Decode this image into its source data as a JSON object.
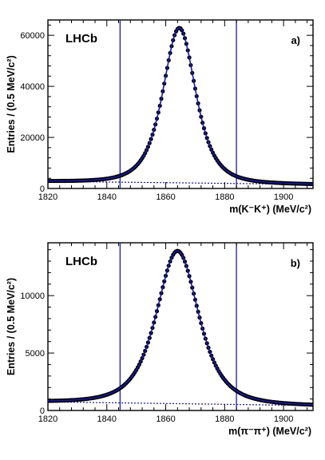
{
  "chart_data": [
    {
      "type": "scatter",
      "panel_label": "a)",
      "brand": "LHCb",
      "ylabel": "Entries / (0.5 MeV/c²)",
      "xlabel": "m(K⁻K⁺) (MeV/c²)",
      "xlim": [
        1820,
        1910
      ],
      "ylim": [
        0,
        66000
      ],
      "x_ticks": [
        1820,
        1840,
        1860,
        1880,
        1900
      ],
      "y_ticks": [
        0,
        20000,
        40000,
        60000
      ],
      "signal_window": [
        1844.5,
        1884
      ],
      "peak": {
        "mean": 1864.6,
        "height": 60700,
        "sigma": 4.5,
        "width_scale": 1.6
      },
      "background": {
        "start": 2800,
        "end": 1600
      },
      "colors": {
        "points": "#000000",
        "fit": "#1a1aa8",
        "window": "#1a1aa8",
        "background": "#1a1aa8"
      }
    },
    {
      "type": "scatter",
      "panel_label": "b)",
      "brand": "LHCb",
      "ylabel": "Entries / (0.5 MeV/c²)",
      "xlabel": "m(π⁻π⁺) (MeV/c²)",
      "xlim": [
        1820,
        1910
      ],
      "ylim": [
        0,
        14600
      ],
      "x_ticks": [
        1820,
        1840,
        1860,
        1880,
        1900
      ],
      "y_ticks": [
        0,
        5000,
        10000
      ],
      "signal_window": [
        1844.5,
        1884
      ],
      "peak": {
        "mean": 1864.0,
        "height": 13300,
        "sigma": 5.6,
        "width_scale": 1.65
      },
      "background": {
        "start": 750,
        "end": 430
      },
      "colors": {
        "points": "#000000",
        "fit": "#1a1aa8",
        "window": "#1a1aa8",
        "background": "#1a1aa8"
      }
    }
  ]
}
